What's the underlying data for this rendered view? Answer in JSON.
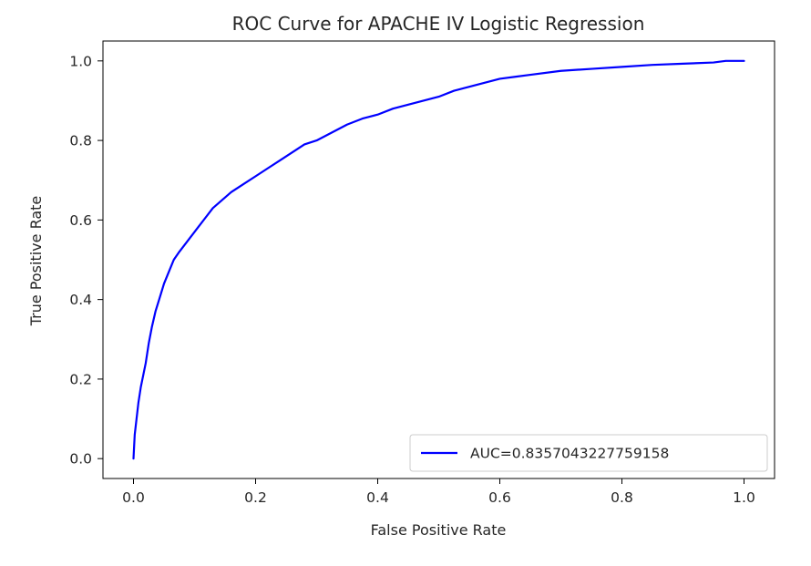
{
  "chart_data": {
    "type": "line",
    "title": "ROC Curve for APACHE IV Logistic Regression",
    "xlabel": "False Positive Rate",
    "ylabel": "True Positive Rate",
    "xlim": [
      -0.05,
      1.05
    ],
    "ylim": [
      -0.05,
      1.05
    ],
    "xticks": [
      0.0,
      0.2,
      0.4,
      0.6,
      0.8,
      1.0
    ],
    "xtick_labels": [
      "0.0",
      "0.2",
      "0.4",
      "0.6",
      "0.8",
      "1.0"
    ],
    "yticks": [
      0.0,
      0.2,
      0.4,
      0.6,
      0.8,
      1.0
    ],
    "ytick_labels": [
      "0.0",
      "0.2",
      "0.4",
      "0.6",
      "0.8",
      "1.0"
    ],
    "grid": false,
    "legend_position": "lower right",
    "series": [
      {
        "name": "AUC=0.8357043227759158",
        "color": "#0000ff",
        "x": [
          0.0,
          0.002,
          0.005,
          0.008,
          0.012,
          0.016,
          0.02,
          0.025,
          0.03,
          0.036,
          0.042,
          0.05,
          0.058,
          0.066,
          0.075,
          0.085,
          0.095,
          0.105,
          0.115,
          0.13,
          0.145,
          0.16,
          0.18,
          0.2,
          0.22,
          0.24,
          0.26,
          0.28,
          0.3,
          0.325,
          0.35,
          0.375,
          0.4,
          0.425,
          0.45,
          0.475,
          0.5,
          0.525,
          0.55,
          0.575,
          0.6,
          0.625,
          0.65,
          0.7,
          0.75,
          0.8,
          0.85,
          0.9,
          0.95,
          0.97,
          1.0
        ],
        "y": [
          0.0,
          0.06,
          0.1,
          0.14,
          0.18,
          0.21,
          0.24,
          0.29,
          0.33,
          0.37,
          0.4,
          0.44,
          0.47,
          0.5,
          0.52,
          0.54,
          0.56,
          0.58,
          0.6,
          0.63,
          0.65,
          0.67,
          0.69,
          0.71,
          0.73,
          0.75,
          0.77,
          0.79,
          0.8,
          0.82,
          0.84,
          0.855,
          0.865,
          0.88,
          0.89,
          0.9,
          0.91,
          0.925,
          0.935,
          0.945,
          0.955,
          0.96,
          0.965,
          0.975,
          0.98,
          0.985,
          0.99,
          0.993,
          0.996,
          1.0,
          1.0
        ]
      }
    ]
  }
}
